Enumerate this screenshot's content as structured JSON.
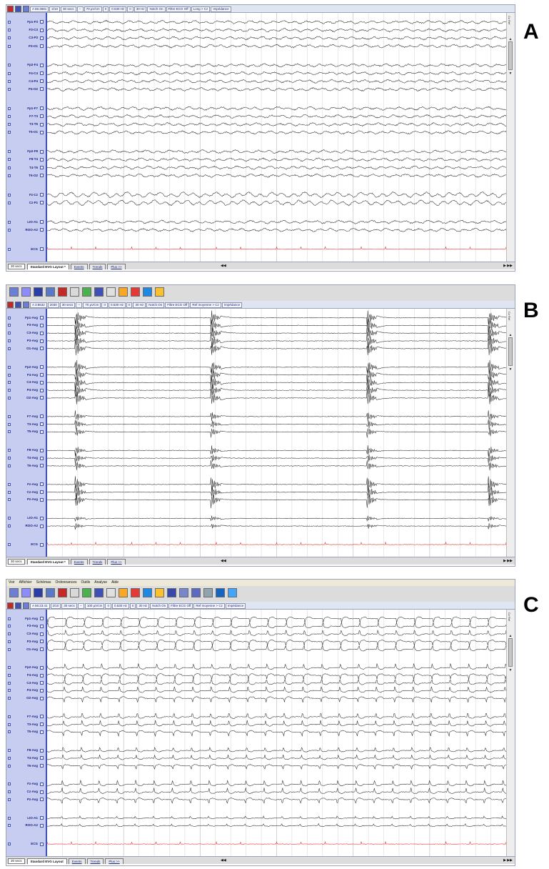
{
  "panels": [
    {
      "letter": "A",
      "menu": [],
      "params": [
        "A 55:4581",
        "2/10",
        "30 secs",
        "--",
        "70 µV/cm",
        "II",
        "0.530 Hz",
        "II",
        "30 Hz",
        "Notch On",
        "Filtre ECG Off",
        "Long > Cz",
        "Impédance"
      ],
      "channels": [
        {
          "label": "Fp1-F3",
          "group": 1
        },
        {
          "label": "F3-C3",
          "group": 1
        },
        {
          "label": "C3-P3",
          "group": 1
        },
        {
          "label": "P3-O1",
          "group": 1
        },
        {
          "label": "Fp2-F4",
          "group": 2
        },
        {
          "label": "F4-C4",
          "group": 2
        },
        {
          "label": "C4-P4",
          "group": 2
        },
        {
          "label": "P4-O2",
          "group": 2
        },
        {
          "label": "Fp1-F7",
          "group": 3
        },
        {
          "label": "F7-T3",
          "group": 3
        },
        {
          "label": "T3-T5",
          "group": 3
        },
        {
          "label": "T5-O1",
          "group": 3
        },
        {
          "label": "Fp2-F8",
          "group": 4
        },
        {
          "label": "F8-T4",
          "group": 4
        },
        {
          "label": "T4-T6",
          "group": 4
        },
        {
          "label": "T6-O2",
          "group": 4
        },
        {
          "label": "Fz-Cz",
          "group": 5
        },
        {
          "label": "Cz-Pz",
          "group": 5
        },
        {
          "label": "LIO-A1",
          "group": 6
        },
        {
          "label": "ROO-A2",
          "group": 6
        },
        {
          "label": "ECG",
          "group": 7
        }
      ],
      "bottom": {
        "speed": "30 secs",
        "layout_tab": "Standard EVG Layout *",
        "tabs": [
          "Events",
          "Trends",
          "Plus >>"
        ]
      },
      "scroll_label": "Cz Ref"
    },
    {
      "letter": "B",
      "menu": [],
      "params": [
        "A 3:8632",
        "2030",
        "30 secs",
        "--",
        "70 µV/cm",
        "II",
        "0.530 Hz",
        "II",
        "30 Hz",
        "Notch On",
        "Filtre ECG Off",
        "Ref moyenne > Cz",
        "Impédance"
      ],
      "channels": [
        {
          "label": "Fp1-Avg",
          "group": 1
        },
        {
          "label": "F3-Avg",
          "group": 1
        },
        {
          "label": "C3-Avg",
          "group": 1
        },
        {
          "label": "P3-Avg",
          "group": 1
        },
        {
          "label": "O1-Avg",
          "group": 1
        },
        {
          "label": "Fp2-Avg",
          "group": 2
        },
        {
          "label": "F4-Avg",
          "group": 2
        },
        {
          "label": "C4-Avg",
          "group": 2
        },
        {
          "label": "P4-Avg",
          "group": 2
        },
        {
          "label": "O2-Avg",
          "group": 2
        },
        {
          "label": "F7-Avg",
          "group": 3
        },
        {
          "label": "T3-Avg",
          "group": 3
        },
        {
          "label": "T5-Avg",
          "group": 3
        },
        {
          "label": "F8-Avg",
          "group": 4
        },
        {
          "label": "T4-Avg",
          "group": 4
        },
        {
          "label": "T6-Avg",
          "group": 4
        },
        {
          "label": "Fz-Avg",
          "group": 5
        },
        {
          "label": "Cz-Avg",
          "group": 5
        },
        {
          "label": "Pz-Avg",
          "group": 5
        },
        {
          "label": "LIO-A1",
          "group": 6
        },
        {
          "label": "ROO-A2",
          "group": 6
        },
        {
          "label": "ECG",
          "group": 7
        }
      ],
      "bottom": {
        "speed": "30 secs",
        "layout_tab": "Standard EVG Layout *",
        "tabs": [
          "Events",
          "Trends",
          "Plus >>"
        ]
      },
      "scroll_label": "Cz Ref"
    },
    {
      "letter": "C",
      "menu": [
        "Voir",
        "Affichier",
        "Schémas",
        "Ordonnances",
        "Outils",
        "Analyse",
        "Aide"
      ],
      "params": [
        "A 56:23:41",
        "2/10",
        "30 secs",
        "--",
        "100 µV/cm",
        "II",
        "0.530 Hz",
        "II",
        "30 Hz",
        "Notch On",
        "Filtre ECG Off",
        "Ref moyenne > Cz",
        "Impédance"
      ],
      "channels": [
        {
          "label": "Fp1-Avg",
          "group": 1
        },
        {
          "label": "F3-Avg",
          "group": 1
        },
        {
          "label": "C3-Avg",
          "group": 1
        },
        {
          "label": "P3-Avg",
          "group": 1
        },
        {
          "label": "O1-Avg",
          "group": 1
        },
        {
          "label": "Fp2-Avg",
          "group": 2
        },
        {
          "label": "F4-Avg",
          "group": 2
        },
        {
          "label": "C4-Avg",
          "group": 2
        },
        {
          "label": "P4-Avg",
          "group": 2
        },
        {
          "label": "O2-Avg",
          "group": 2
        },
        {
          "label": "F7-Avg",
          "group": 3
        },
        {
          "label": "T3-Avg",
          "group": 3
        },
        {
          "label": "T5-Avg",
          "group": 3
        },
        {
          "label": "F8-Avg",
          "group": 4
        },
        {
          "label": "T4-Avg",
          "group": 4
        },
        {
          "label": "T6-Avg",
          "group": 4
        },
        {
          "label": "Fz-Avg",
          "group": 5
        },
        {
          "label": "Cz-Avg",
          "group": 5
        },
        {
          "label": "Pz-Avg",
          "group": 5
        },
        {
          "label": "LIO-A1",
          "group": 6
        },
        {
          "label": "ROO-A2",
          "group": 6
        },
        {
          "label": "ECG",
          "group": 7
        }
      ],
      "bottom": {
        "speed": "30 secs",
        "layout_tab": "Standard EVG Layout",
        "tabs": [
          "Events",
          "Trends",
          "Plus >>"
        ]
      },
      "scroll_label": "Cz Ref"
    }
  ],
  "toolbar_buttons": [
    {
      "name": "montage-icon",
      "color": "#6b7fd7"
    },
    {
      "name": "grid-icon",
      "color": "#8c8cff"
    },
    {
      "name": "bars-icon",
      "color": "#2b3ea8"
    },
    {
      "name": "spectrum-icon",
      "color": "#5a78c8"
    },
    {
      "name": "record-icon",
      "color": "#c62828"
    },
    {
      "name": "head-map-icon",
      "color": "#d9d9d9"
    },
    {
      "name": "topography-icon",
      "color": "#4caf50"
    },
    {
      "name": "page-icon",
      "color": "#3f51b5"
    },
    {
      "name": "marker-icon",
      "color": "#e0e0e0"
    },
    {
      "name": "cursor-a-icon",
      "color": "#f9a825"
    },
    {
      "name": "cursor-b-icon",
      "color": "#e53935"
    },
    {
      "name": "cursor-c-icon",
      "color": "#1e88e5"
    },
    {
      "name": "cursor-d-icon",
      "color": "#fbc02d"
    },
    {
      "name": "list-icon",
      "color": "#3949ab"
    },
    {
      "name": "compare-icon",
      "color": "#7986cb"
    },
    {
      "name": "table-icon",
      "color": "#5c6bc0"
    },
    {
      "name": "graph-icon",
      "color": "#90a4ae"
    },
    {
      "name": "cfm-icon",
      "color": "#1565c0"
    },
    {
      "name": "report-icon",
      "color": "#42a5f5"
    }
  ],
  "colors": {
    "trace": "#2b2b2b",
    "ecg": "#e53935",
    "sidebar": "#c7cdf1",
    "sidebar_border": "#3f51b5",
    "grid": "#c8c8c8"
  }
}
